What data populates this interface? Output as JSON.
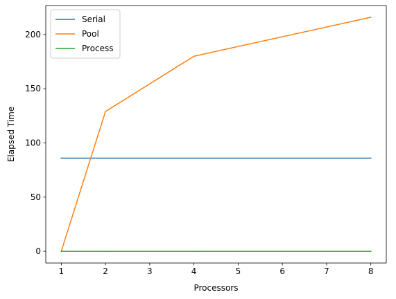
{
  "chart_data": {
    "type": "line",
    "title": "",
    "xlabel": "Processors",
    "ylabel": "Elapsed Time",
    "x": [
      1,
      2,
      4,
      8
    ],
    "xlim": [
      0.65,
      8.35
    ],
    "ylim": [
      -10.8,
      226.8
    ],
    "xticks": [
      1,
      2,
      3,
      4,
      5,
      6,
      7,
      8
    ],
    "yticks": [
      0,
      50,
      100,
      150,
      200
    ],
    "grid": false,
    "legend_position": "top-left",
    "series": [
      {
        "name": "Serial",
        "color": "#1f77b4",
        "values": [
          86,
          86,
          86,
          86
        ]
      },
      {
        "name": "Pool",
        "color": "#ff7f0e",
        "values": [
          0,
          129,
          180,
          216
        ]
      },
      {
        "name": "Process",
        "color": "#2ca02c",
        "values": [
          0,
          0,
          0,
          0
        ]
      }
    ]
  }
}
